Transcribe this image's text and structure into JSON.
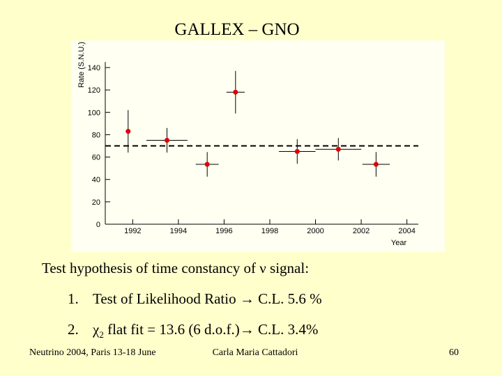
{
  "slide": {
    "title": "GALLEX – GNO",
    "lead": "Test hypothesis of time constancy of ν signal:",
    "items": [
      {
        "number": "1.",
        "parts": [
          "Test of Likelihood Ratio → C.L. 5.6 %"
        ]
      },
      {
        "number": "2.",
        "parts": [
          "χ",
          "2",
          " flat fit = 13.6 (6 d.o.f.)→ C.L. 3.4%"
        ]
      }
    ],
    "footer": {
      "left": "Neutrino 2004, Paris 13-18 June",
      "center": "Carla Maria Cattadori",
      "right": "60"
    }
  },
  "chart_data": {
    "type": "scatter",
    "ylabel": "Rate (S.N.U.)",
    "xlabel": "Year",
    "x": [
      1991.8,
      1993.5,
      1995.26,
      1996.5,
      1999.2,
      2001.0,
      2002.65
    ],
    "values": [
      83,
      75,
      53.5,
      118,
      65,
      67,
      53.5
    ],
    "xerr": [
      0,
      0.9,
      0.5,
      0.4,
      0.8,
      1.0,
      0.6
    ],
    "yerr": [
      19,
      11,
      11,
      19,
      11,
      10,
      11
    ],
    "color": "#dd0000",
    "mean_line": 70,
    "xlim": [
      1990.8,
      2004.5
    ],
    "ylim": [
      0,
      145
    ],
    "xticks": [
      1992,
      1994,
      1996,
      1998,
      2000,
      2002,
      2004
    ],
    "yticks": [
      0,
      20,
      40,
      60,
      80,
      100,
      120,
      140
    ]
  }
}
